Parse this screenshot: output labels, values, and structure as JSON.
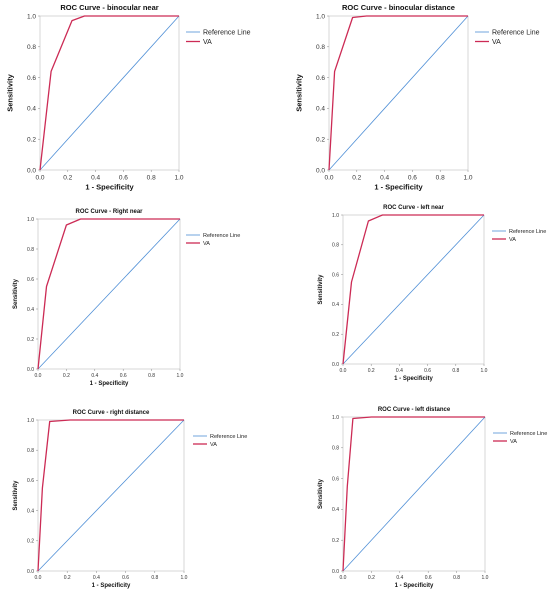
{
  "chart_data": [
    {
      "type": "line",
      "title": "ROC Curve - binocular near",
      "xlabel": "1 - Specificity",
      "ylabel": "Sensitivity",
      "xlim": [
        0,
        1
      ],
      "ylim": [
        0,
        1
      ],
      "xticks": [
        "0.0",
        "0.2",
        "0.4",
        "0.6",
        "0.8",
        "1.0"
      ],
      "yticks": [
        "0.0",
        "0.2",
        "0.4",
        "0.6",
        "0.8",
        "1.0"
      ],
      "legend_position": "top-right",
      "series": [
        {
          "name": "Reference Line",
          "color": "#4f8fd6",
          "x": [
            0,
            1
          ],
          "y": [
            0,
            1
          ]
        },
        {
          "name": "VA",
          "color": "#cc2b55",
          "x": [
            0,
            0.08,
            0.23,
            0.32,
            1.0
          ],
          "y": [
            0,
            0.64,
            0.97,
            1.0,
            1.0
          ]
        }
      ]
    },
    {
      "type": "line",
      "title": "ROC Curve - binocular distance",
      "xlabel": "1 - Specificity",
      "ylabel": "Sensitivity",
      "xlim": [
        0,
        1
      ],
      "ylim": [
        0,
        1
      ],
      "xticks": [
        "0.0",
        "0.2",
        "0.4",
        "0.6",
        "0.8",
        "1.0"
      ],
      "yticks": [
        "0.0",
        "0.2",
        "0.4",
        "0.6",
        "0.8",
        "1.0"
      ],
      "legend_position": "top-right",
      "series": [
        {
          "name": "Reference Line",
          "color": "#4f8fd6",
          "x": [
            0,
            1
          ],
          "y": [
            0,
            1
          ]
        },
        {
          "name": "VA",
          "color": "#cc2b55",
          "x": [
            0,
            0.04,
            0.17,
            0.27,
            1.0
          ],
          "y": [
            0,
            0.64,
            0.99,
            1.0,
            1.0
          ]
        }
      ]
    },
    {
      "type": "line",
      "title": "ROC Curve - Right near",
      "xlabel": "1 - Specificity",
      "ylabel": "Sensitivity",
      "xlim": [
        0,
        1
      ],
      "ylim": [
        0,
        1
      ],
      "xticks": [
        "0.0",
        "0.2",
        "0.4",
        "0.6",
        "0.8",
        "1.0"
      ],
      "yticks": [
        "0.0",
        "0.2",
        "0.4",
        "0.6",
        "0.8",
        "1.0"
      ],
      "legend_position": "top-right",
      "series": [
        {
          "name": "Reference Line",
          "color": "#4f8fd6",
          "x": [
            0,
            1
          ],
          "y": [
            0,
            1
          ]
        },
        {
          "name": "VA",
          "color": "#cc2b55",
          "x": [
            0,
            0.06,
            0.2,
            0.3,
            1.0
          ],
          "y": [
            0,
            0.55,
            0.96,
            1.0,
            1.0
          ]
        }
      ]
    },
    {
      "type": "line",
      "title": "ROC Curve - left near",
      "xlabel": "1 - Specificity",
      "ylabel": "Sensitivity",
      "xlim": [
        0,
        1
      ],
      "ylim": [
        0,
        1
      ],
      "xticks": [
        "0.0",
        "0.2",
        "0.4",
        "0.6",
        "0.8",
        "1.0"
      ],
      "yticks": [
        "0.0",
        "0.2",
        "0.4",
        "0.6",
        "0.8",
        "1.0"
      ],
      "legend_position": "top-right",
      "series": [
        {
          "name": "Reference Line",
          "color": "#4f8fd6",
          "x": [
            0,
            1
          ],
          "y": [
            0,
            1
          ]
        },
        {
          "name": "VA",
          "color": "#cc2b55",
          "x": [
            0,
            0.06,
            0.18,
            0.28,
            1.0
          ],
          "y": [
            0,
            0.55,
            0.96,
            1.0,
            1.0
          ]
        }
      ]
    },
    {
      "type": "line",
      "title": "ROC Curve - right distance",
      "xlabel": "1 - Specificity",
      "ylabel": "Sensitivity",
      "xlim": [
        0,
        1
      ],
      "ylim": [
        0,
        1
      ],
      "xticks": [
        "0.0",
        "0.2",
        "0.4",
        "0.6",
        "0.8",
        "1.0"
      ],
      "yticks": [
        "0.0",
        "0.2",
        "0.4",
        "0.6",
        "0.8",
        "1.0"
      ],
      "legend_position": "top-right",
      "series": [
        {
          "name": "Reference Line",
          "color": "#4f8fd6",
          "x": [
            0,
            1
          ],
          "y": [
            0,
            1
          ]
        },
        {
          "name": "VA",
          "color": "#cc2b55",
          "x": [
            0,
            0.03,
            0.08,
            0.22,
            1.0
          ],
          "y": [
            0,
            0.55,
            0.99,
            1.0,
            1.0
          ]
        }
      ]
    },
    {
      "type": "line",
      "title": "ROC Curve - left distance",
      "xlabel": "1 - Specificity",
      "ylabel": "Sensitivity",
      "xlim": [
        0,
        1
      ],
      "ylim": [
        0,
        1
      ],
      "xticks": [
        "0.0",
        "0.2",
        "0.4",
        "0.6",
        "0.8",
        "1.0"
      ],
      "yticks": [
        "0.0",
        "0.2",
        "0.4",
        "0.6",
        "0.8",
        "1.0"
      ],
      "legend_position": "top-right",
      "series": [
        {
          "name": "Reference Line",
          "color": "#4f8fd6",
          "x": [
            0,
            1
          ],
          "y": [
            0,
            1
          ]
        },
        {
          "name": "VA",
          "color": "#cc2b55",
          "x": [
            0,
            0.03,
            0.07,
            0.2,
            1.0
          ],
          "y": [
            0,
            0.55,
            0.99,
            1.0,
            1.0
          ]
        }
      ]
    }
  ]
}
